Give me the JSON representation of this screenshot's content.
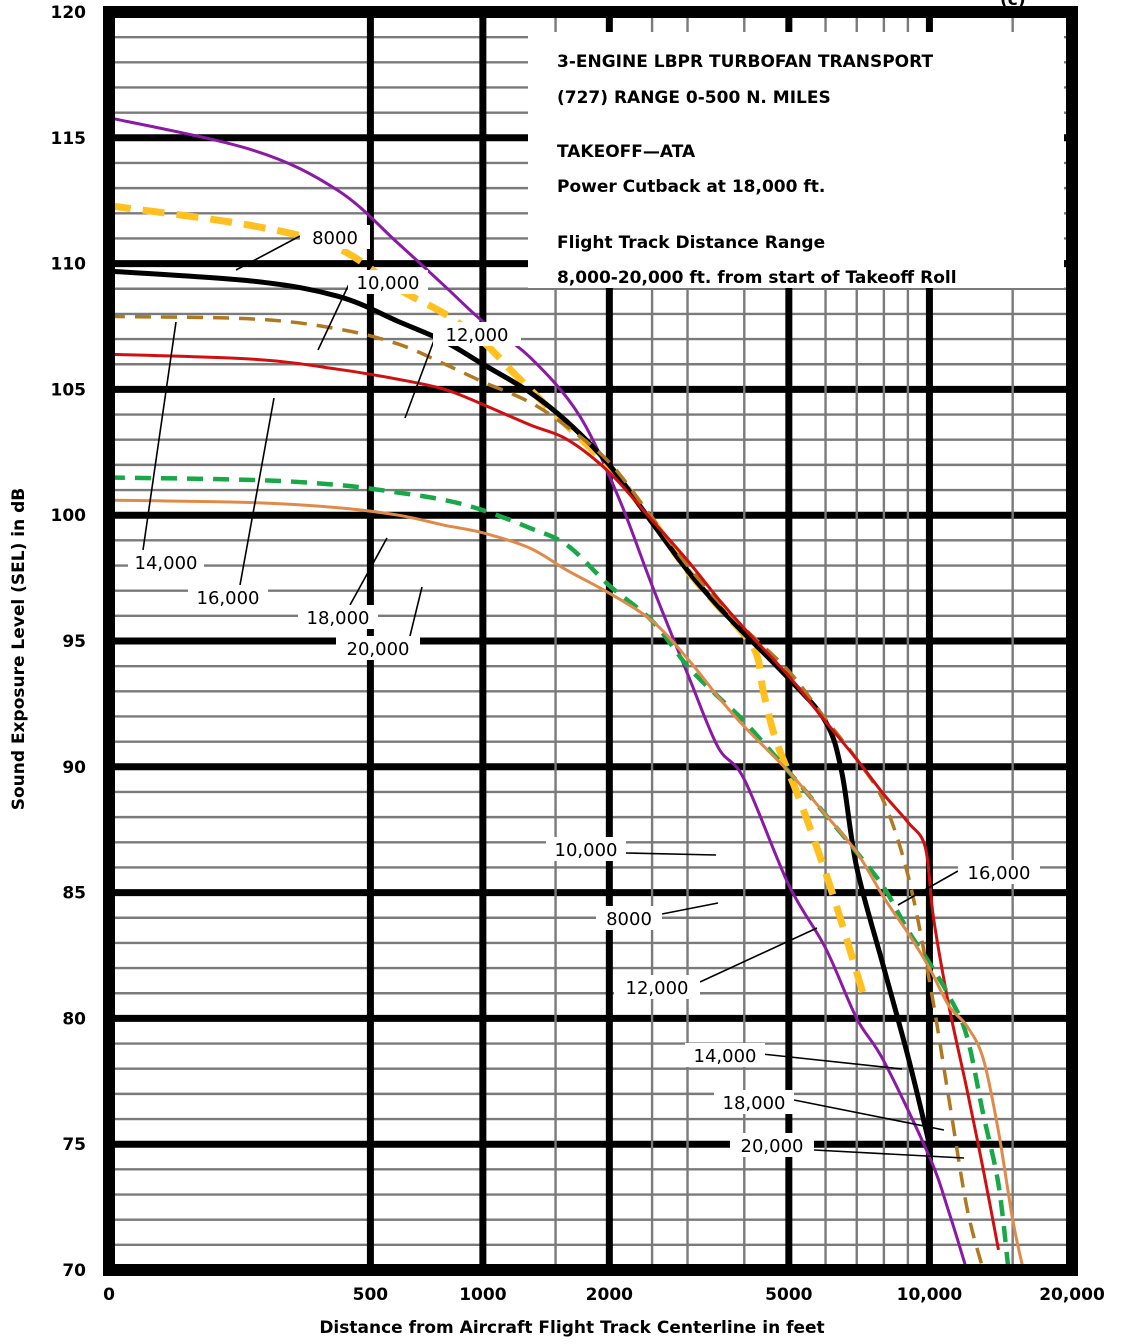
{
  "chart_data": {
    "type": "line",
    "title": "",
    "xlabel": "Distance from Aircraft Flight Track Centerline in feet",
    "ylabel": "Sound Exposure Level (SEL) in dB",
    "xscale": "log (x + 200)",
    "xlim": [
      0,
      20000
    ],
    "ylim": [
      70,
      120
    ],
    "grid": true,
    "corner_mark": "(c)",
    "x_ticks": [
      "0",
      "500",
      "1000",
      "2000",
      "5000",
      "10,000",
      "20,000"
    ],
    "y_ticks": [
      "70",
      "75",
      "80",
      "85",
      "90",
      "95",
      "100",
      "105",
      "110",
      "115",
      "120"
    ],
    "info_box": [
      "3-ENGINE LBPR TURBOFAN TRANSPORT",
      "(727) RANGE 0-500 N. MILES",
      "",
      "TAKEOFF—ATA",
      "Power Cutback at 18,000 ft.",
      "",
      "Flight Track Distance Range",
      "8,000-20,000 ft. from start of Takeoff Roll"
    ],
    "series": [
      {
        "name": "8000",
        "color": "#8a1aa6",
        "dash": "solid",
        "points": [
          [
            0,
            115.8
          ],
          [
            200,
            114.5
          ],
          [
            400,
            112.9
          ],
          [
            600,
            110.8
          ],
          [
            800,
            109.1
          ],
          [
            1000,
            107.7
          ],
          [
            1300,
            106.3
          ],
          [
            1700,
            104.0
          ],
          [
            2100,
            100.7
          ],
          [
            2500,
            97.2
          ],
          [
            3000,
            93.7
          ],
          [
            3500,
            90.8
          ],
          [
            4000,
            89.5
          ],
          [
            5000,
            85.3
          ],
          [
            6000,
            82.8
          ],
          [
            7000,
            80.0
          ],
          [
            8000,
            78.3
          ],
          [
            10000,
            74.5
          ],
          [
            11000,
            72.3
          ],
          [
            12000,
            70.0
          ]
        ]
      },
      {
        "name": "10,000",
        "color": "#ffc020",
        "dash": "dashed",
        "points": [
          [
            0,
            112.3
          ],
          [
            200,
            111.5
          ],
          [
            400,
            110.6
          ],
          [
            600,
            109.0
          ],
          [
            800,
            108.0
          ],
          [
            1000,
            106.9
          ],
          [
            1200,
            105.6
          ],
          [
            1500,
            104.0
          ],
          [
            2000,
            101.9
          ],
          [
            2500,
            99.8
          ],
          [
            3000,
            97.8
          ],
          [
            3500,
            96.4
          ],
          [
            4200,
            94.7
          ],
          [
            4400,
            93.0
          ],
          [
            4700,
            91.0
          ],
          [
            5300,
            88.6
          ],
          [
            6200,
            85.0
          ],
          [
            7300,
            80.7
          ]
        ]
      },
      {
        "name": "12,000",
        "color": "#000000",
        "dash": "solid",
        "points": [
          [
            0,
            109.7
          ],
          [
            200,
            109.3
          ],
          [
            400,
            108.7
          ],
          [
            600,
            107.7
          ],
          [
            800,
            106.9
          ],
          [
            1000,
            106.0
          ],
          [
            1300,
            104.9
          ],
          [
            1600,
            103.7
          ],
          [
            2000,
            102.0
          ],
          [
            2500,
            99.7
          ],
          [
            3000,
            97.8
          ],
          [
            3500,
            96.4
          ],
          [
            4000,
            95.3
          ],
          [
            5000,
            93.5
          ],
          [
            6000,
            91.8
          ],
          [
            6500,
            89.8
          ],
          [
            7000,
            86.0
          ],
          [
            8000,
            82.0
          ],
          [
            9000,
            78.5
          ],
          [
            10000,
            75.0
          ]
        ]
      },
      {
        "name": "14,000",
        "color": "#b07820",
        "dash": "dashed",
        "points": [
          [
            0,
            107.9
          ],
          [
            200,
            107.8
          ],
          [
            400,
            107.4
          ],
          [
            600,
            106.8
          ],
          [
            800,
            106.0
          ],
          [
            1000,
            105.3
          ],
          [
            1300,
            104.5
          ],
          [
            1600,
            103.5
          ],
          [
            2000,
            102.1
          ],
          [
            2500,
            99.9
          ],
          [
            3000,
            98.0
          ],
          [
            3500,
            96.6
          ],
          [
            4000,
            95.5
          ],
          [
            5000,
            93.8
          ],
          [
            6000,
            91.9
          ],
          [
            7000,
            90.3
          ],
          [
            8000,
            88.6
          ],
          [
            9000,
            85.7
          ],
          [
            10000,
            81.5
          ],
          [
            11000,
            76.8
          ],
          [
            12000,
            72.5
          ],
          [
            13000,
            70.0
          ]
        ]
      },
      {
        "name": "16,000",
        "color": "#d01010",
        "dash": "solid",
        "points": [
          [
            0,
            106.4
          ],
          [
            200,
            106.2
          ],
          [
            400,
            105.8
          ],
          [
            600,
            105.4
          ],
          [
            800,
            105.0
          ],
          [
            1000,
            104.4
          ],
          [
            1300,
            103.6
          ],
          [
            1600,
            103.0
          ],
          [
            2000,
            101.7
          ],
          [
            2500,
            99.8
          ],
          [
            3000,
            98.2
          ],
          [
            3500,
            96.7
          ],
          [
            4000,
            95.5
          ],
          [
            5000,
            93.6
          ],
          [
            6000,
            91.8
          ],
          [
            7000,
            90.3
          ],
          [
            8000,
            88.9
          ],
          [
            9000,
            87.8
          ],
          [
            9800,
            86.8
          ],
          [
            10200,
            84.0
          ],
          [
            11000,
            80.5
          ],
          [
            12000,
            77.2
          ],
          [
            13000,
            74.0
          ],
          [
            14000,
            70.8
          ]
        ]
      },
      {
        "name": "18,000",
        "color": "#18a848",
        "dash": "dashed",
        "points": [
          [
            0,
            101.5
          ],
          [
            200,
            101.4
          ],
          [
            400,
            101.2
          ],
          [
            600,
            100.9
          ],
          [
            800,
            100.6
          ],
          [
            1000,
            100.2
          ],
          [
            1300,
            99.5
          ],
          [
            1600,
            98.8
          ],
          [
            2000,
            97.2
          ],
          [
            2500,
            95.8
          ],
          [
            3000,
            94.0
          ],
          [
            3500,
            92.8
          ],
          [
            4000,
            91.8
          ],
          [
            5000,
            89.8
          ],
          [
            6000,
            88.1
          ],
          [
            7000,
            86.6
          ],
          [
            8000,
            85.2
          ],
          [
            9000,
            83.5
          ],
          [
            10000,
            82.2
          ],
          [
            11000,
            80.9
          ],
          [
            12000,
            79.3
          ],
          [
            13000,
            76.2
          ],
          [
            14000,
            73.4
          ],
          [
            14700,
            70.0
          ]
        ]
      },
      {
        "name": "20,000",
        "color": "#e08a4a",
        "dash": "solid",
        "points": [
          [
            0,
            100.6
          ],
          [
            200,
            100.5
          ],
          [
            400,
            100.3
          ],
          [
            600,
            100.0
          ],
          [
            800,
            99.6
          ],
          [
            1000,
            99.3
          ],
          [
            1300,
            98.7
          ],
          [
            1600,
            97.8
          ],
          [
            2000,
            96.9
          ],
          [
            2500,
            95.8
          ],
          [
            3000,
            94.3
          ],
          [
            3500,
            92.8
          ],
          [
            4000,
            91.6
          ],
          [
            5000,
            89.8
          ],
          [
            6000,
            88.1
          ],
          [
            7000,
            86.6
          ],
          [
            8000,
            84.8
          ],
          [
            9000,
            83.4
          ],
          [
            10000,
            82.0
          ],
          [
            11000,
            80.5
          ],
          [
            12000,
            79.7
          ],
          [
            13000,
            78.4
          ],
          [
            14000,
            75.5
          ],
          [
            15000,
            72.0
          ],
          [
            15800,
            70.0
          ]
        ]
      }
    ],
    "callouts": [
      {
        "label": "8000"
      },
      {
        "label": "10,000"
      },
      {
        "label": "12,000"
      },
      {
        "label": "14,000"
      },
      {
        "label": "16,000"
      },
      {
        "label": "18,000"
      },
      {
        "label": "20,000"
      },
      {
        "label": "10,000"
      },
      {
        "label": "8000"
      },
      {
        "label": "12,000"
      },
      {
        "label": "16,000"
      },
      {
        "label": "14,000"
      },
      {
        "label": "18,000"
      },
      {
        "label": "20,000"
      }
    ]
  }
}
